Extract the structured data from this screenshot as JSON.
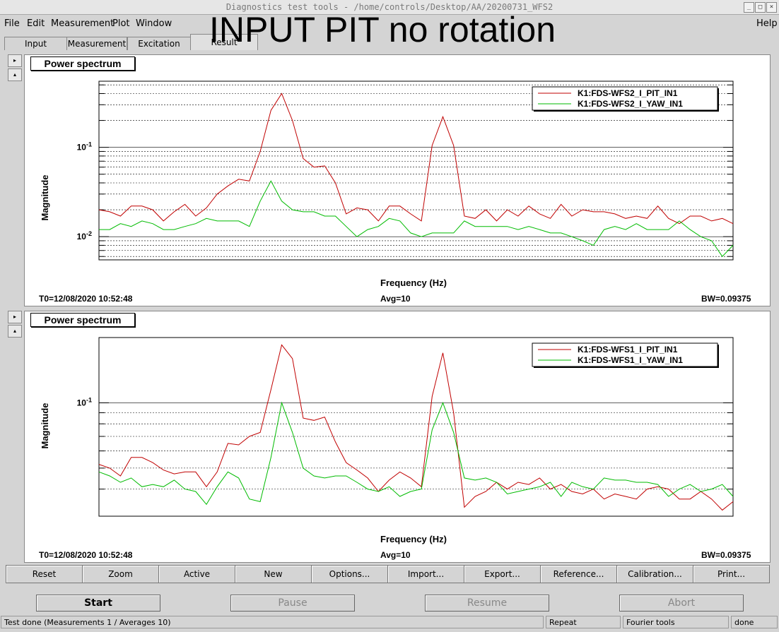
{
  "window": {
    "title": "Diagnostics test tools - /home/controls/Desktop/AA/20200731_WFS2"
  },
  "overlay_title": "INPUT PIT no rotation",
  "menu": {
    "file": "File",
    "edit": "Edit",
    "measurement": "Measurement",
    "plot": "Plot",
    "window": "Window",
    "help": "Help"
  },
  "tabs": [
    "Input",
    "Measurement",
    "Excitation",
    "Result"
  ],
  "active_tab": "Result",
  "colors": {
    "series_red": "#c00000",
    "series_green": "#00bb00",
    "grid": "#000000"
  },
  "panels": [
    {
      "title": "Power spectrum",
      "ylabel": "Magnitude",
      "xlabel": "Frequency (Hz)",
      "y_ticks": [
        {
          "base": "10",
          "exp": "-1"
        },
        {
          "base": "10",
          "exp": "-2"
        }
      ],
      "legend": [
        "K1:FDS-WFS2_I_PIT_IN1",
        "K1:FDS-WFS2_I_YAW_IN1"
      ],
      "t0": "T0=12/08/2020 10:52:48",
      "avg": "Avg=10",
      "bw": "BW=0.09375"
    },
    {
      "title": "Power spectrum",
      "ylabel": "Magnitude",
      "xlabel": "Frequency (Hz)",
      "y_ticks": [
        {
          "base": "10",
          "exp": "-1"
        }
      ],
      "legend": [
        "K1:FDS-WFS1_I_PIT_IN1",
        "K1:FDS-WFS1_I_YAW_IN1"
      ],
      "t0": "T0=12/08/2020 10:52:48",
      "avg": "Avg=10",
      "bw": "BW=0.09375"
    }
  ],
  "chart_data": [
    {
      "type": "line",
      "log_y": true,
      "ylim": [
        0.0055,
        0.55
      ],
      "x": [
        0,
        1,
        2,
        3,
        4,
        5,
        6,
        7,
        8,
        9,
        10,
        11,
        12,
        13,
        14,
        15,
        16,
        17,
        18,
        19,
        20,
        21,
        22,
        23,
        24,
        25,
        26,
        27,
        28,
        29,
        30,
        31,
        32,
        33,
        34,
        35,
        36,
        37,
        38,
        39,
        40,
        41,
        42,
        43,
        44,
        45,
        46,
        47,
        48,
        49,
        50,
        51,
        52,
        53,
        54,
        55,
        56,
        57,
        58,
        59
      ],
      "series": [
        {
          "name": "K1:FDS-WFS2_I_PIT_IN1",
          "color": "red",
          "values": [
            0.02,
            0.019,
            0.017,
            0.022,
            0.022,
            0.02,
            0.015,
            0.019,
            0.023,
            0.017,
            0.021,
            0.03,
            0.037,
            0.044,
            0.042,
            0.09,
            0.26,
            0.4,
            0.2,
            0.075,
            0.06,
            0.062,
            0.04,
            0.018,
            0.021,
            0.02,
            0.015,
            0.022,
            0.022,
            0.018,
            0.015,
            0.105,
            0.22,
            0.105,
            0.017,
            0.016,
            0.02,
            0.015,
            0.02,
            0.017,
            0.022,
            0.018,
            0.016,
            0.023,
            0.017,
            0.02,
            0.019,
            0.019,
            0.018,
            0.016,
            0.017,
            0.016,
            0.022,
            0.016,
            0.014,
            0.017,
            0.017,
            0.015,
            0.016,
            0.014
          ]
        },
        {
          "name": "K1:FDS-WFS2_I_YAW_IN1",
          "color": "green",
          "values": [
            0.012,
            0.012,
            0.014,
            0.013,
            0.015,
            0.014,
            0.012,
            0.012,
            0.013,
            0.014,
            0.016,
            0.015,
            0.015,
            0.015,
            0.013,
            0.025,
            0.042,
            0.025,
            0.02,
            0.019,
            0.019,
            0.017,
            0.017,
            0.013,
            0.01,
            0.012,
            0.013,
            0.016,
            0.015,
            0.011,
            0.01,
            0.011,
            0.011,
            0.011,
            0.015,
            0.013,
            0.013,
            0.013,
            0.013,
            0.012,
            0.013,
            0.012,
            0.011,
            0.011,
            0.01,
            0.009,
            0.008,
            0.012,
            0.013,
            0.012,
            0.014,
            0.012,
            0.012,
            0.012,
            0.015,
            0.012,
            0.01,
            0.009,
            0.006,
            0.008
          ]
        }
      ]
    },
    {
      "type": "line",
      "log_y": true,
      "ylim": [
        0.03,
        0.2
      ],
      "x": [
        0,
        1,
        2,
        3,
        4,
        5,
        6,
        7,
        8,
        9,
        10,
        11,
        12,
        13,
        14,
        15,
        16,
        17,
        18,
        19,
        20,
        21,
        22,
        23,
        24,
        25,
        26,
        27,
        28,
        29,
        30,
        31,
        32,
        33,
        34,
        35,
        36,
        37,
        38,
        39,
        40,
        41,
        42,
        43,
        44,
        45,
        46,
        47,
        48,
        49,
        50,
        51,
        52,
        53,
        54,
        55,
        56,
        57,
        58,
        59
      ],
      "series": [
        {
          "name": "K1:FDS-WFS1_I_PIT_IN1",
          "color": "red",
          "values": [
            0.052,
            0.05,
            0.046,
            0.056,
            0.056,
            0.053,
            0.049,
            0.047,
            0.048,
            0.048,
            0.041,
            0.048,
            0.065,
            0.064,
            0.07,
            0.073,
            0.115,
            0.185,
            0.16,
            0.085,
            0.083,
            0.086,
            0.066,
            0.053,
            0.049,
            0.045,
            0.039,
            0.044,
            0.048,
            0.045,
            0.041,
            0.107,
            0.17,
            0.09,
            0.033,
            0.037,
            0.039,
            0.043,
            0.04,
            0.043,
            0.042,
            0.045,
            0.04,
            0.042,
            0.039,
            0.038,
            0.04,
            0.036,
            0.038,
            0.037,
            0.036,
            0.04,
            0.041,
            0.04,
            0.036,
            0.036,
            0.039,
            0.036,
            0.032,
            0.035
          ]
        },
        {
          "name": "K1:FDS-WFS1_I_YAW_IN1",
          "color": "green",
          "values": [
            0.048,
            0.046,
            0.043,
            0.045,
            0.041,
            0.042,
            0.041,
            0.044,
            0.04,
            0.039,
            0.034,
            0.041,
            0.048,
            0.045,
            0.036,
            0.035,
            0.056,
            0.1,
            0.073,
            0.05,
            0.046,
            0.045,
            0.046,
            0.046,
            0.043,
            0.04,
            0.039,
            0.041,
            0.037,
            0.039,
            0.04,
            0.075,
            0.1,
            0.073,
            0.045,
            0.044,
            0.045,
            0.043,
            0.038,
            0.039,
            0.04,
            0.041,
            0.043,
            0.037,
            0.043,
            0.041,
            0.04,
            0.045,
            0.044,
            0.044,
            0.043,
            0.043,
            0.042,
            0.037,
            0.04,
            0.042,
            0.039,
            0.04,
            0.042,
            0.037
          ]
        }
      ]
    }
  ],
  "sidebar_buttons": {
    "expand": "▸",
    "collapse": "▴"
  },
  "toolbar": [
    "Reset",
    "Zoom",
    "Active",
    "New",
    "Options...",
    "Import...",
    "Export...",
    "Reference...",
    "Calibration...",
    "Print..."
  ],
  "actions": {
    "start": "Start",
    "pause": "Pause",
    "resume": "Resume",
    "abort": "Abort"
  },
  "status": {
    "message": "Test done (Measurements 1 / Averages 10)",
    "mode": "Repeat",
    "tool": "Fourier tools",
    "state": "done"
  },
  "window_controls": {
    "minimize": "_",
    "maximize": "□",
    "close": "×"
  }
}
